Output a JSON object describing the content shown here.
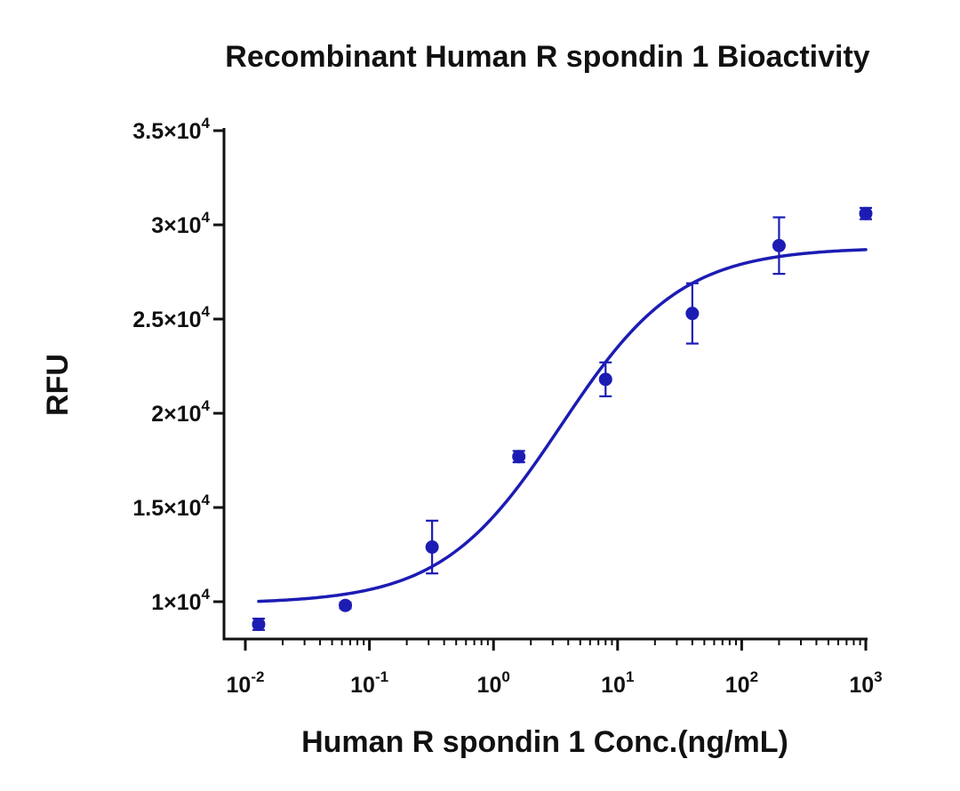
{
  "chart_data": {
    "type": "scatter",
    "title": "Recombinant Human R spondin 1 Bioactivity",
    "xlabel": "Human R spondin 1 Conc.(ng/mL)",
    "ylabel": "RFU",
    "xscale": "log",
    "xlim": [
      0.01,
      1000
    ],
    "ylim": [
      8000,
      35000
    ],
    "grid": false,
    "legend": "none",
    "series_color": "#1c1cb4",
    "xticks": [
      {
        "value": 0.01,
        "base": "10",
        "exp": "-2"
      },
      {
        "value": 0.1,
        "base": "10",
        "exp": "-1"
      },
      {
        "value": 1,
        "base": "10",
        "exp": "0"
      },
      {
        "value": 10,
        "base": "10",
        "exp": "1"
      },
      {
        "value": 100,
        "base": "10",
        "exp": "2"
      },
      {
        "value": 1000,
        "base": "10",
        "exp": "3"
      }
    ],
    "yticks": [
      {
        "value": 10000,
        "mant": "1",
        "exp": "4"
      },
      {
        "value": 15000,
        "mant": "1.5",
        "exp": "4"
      },
      {
        "value": 20000,
        "mant": "2",
        "exp": "4"
      },
      {
        "value": 25000,
        "mant": "2.5",
        "exp": "4"
      },
      {
        "value": 30000,
        "mant": "3",
        "exp": "4"
      },
      {
        "value": 35000,
        "mant": "3.5",
        "exp": "4"
      }
    ],
    "x": [
      0.0128,
      0.064,
      0.32,
      1.6,
      8,
      40,
      200,
      1000
    ],
    "y": [
      8800,
      9800,
      12900,
      17700,
      21800,
      25300,
      28900,
      30600
    ],
    "yerr": [
      300,
      150,
      1400,
      300,
      900,
      1600,
      1500,
      300
    ],
    "fit": {
      "model": "4PL",
      "bottom": 9900,
      "top": 28800,
      "ec50": 3.5,
      "hill": 0.9,
      "x_range": [
        0.0128,
        1000
      ]
    }
  }
}
